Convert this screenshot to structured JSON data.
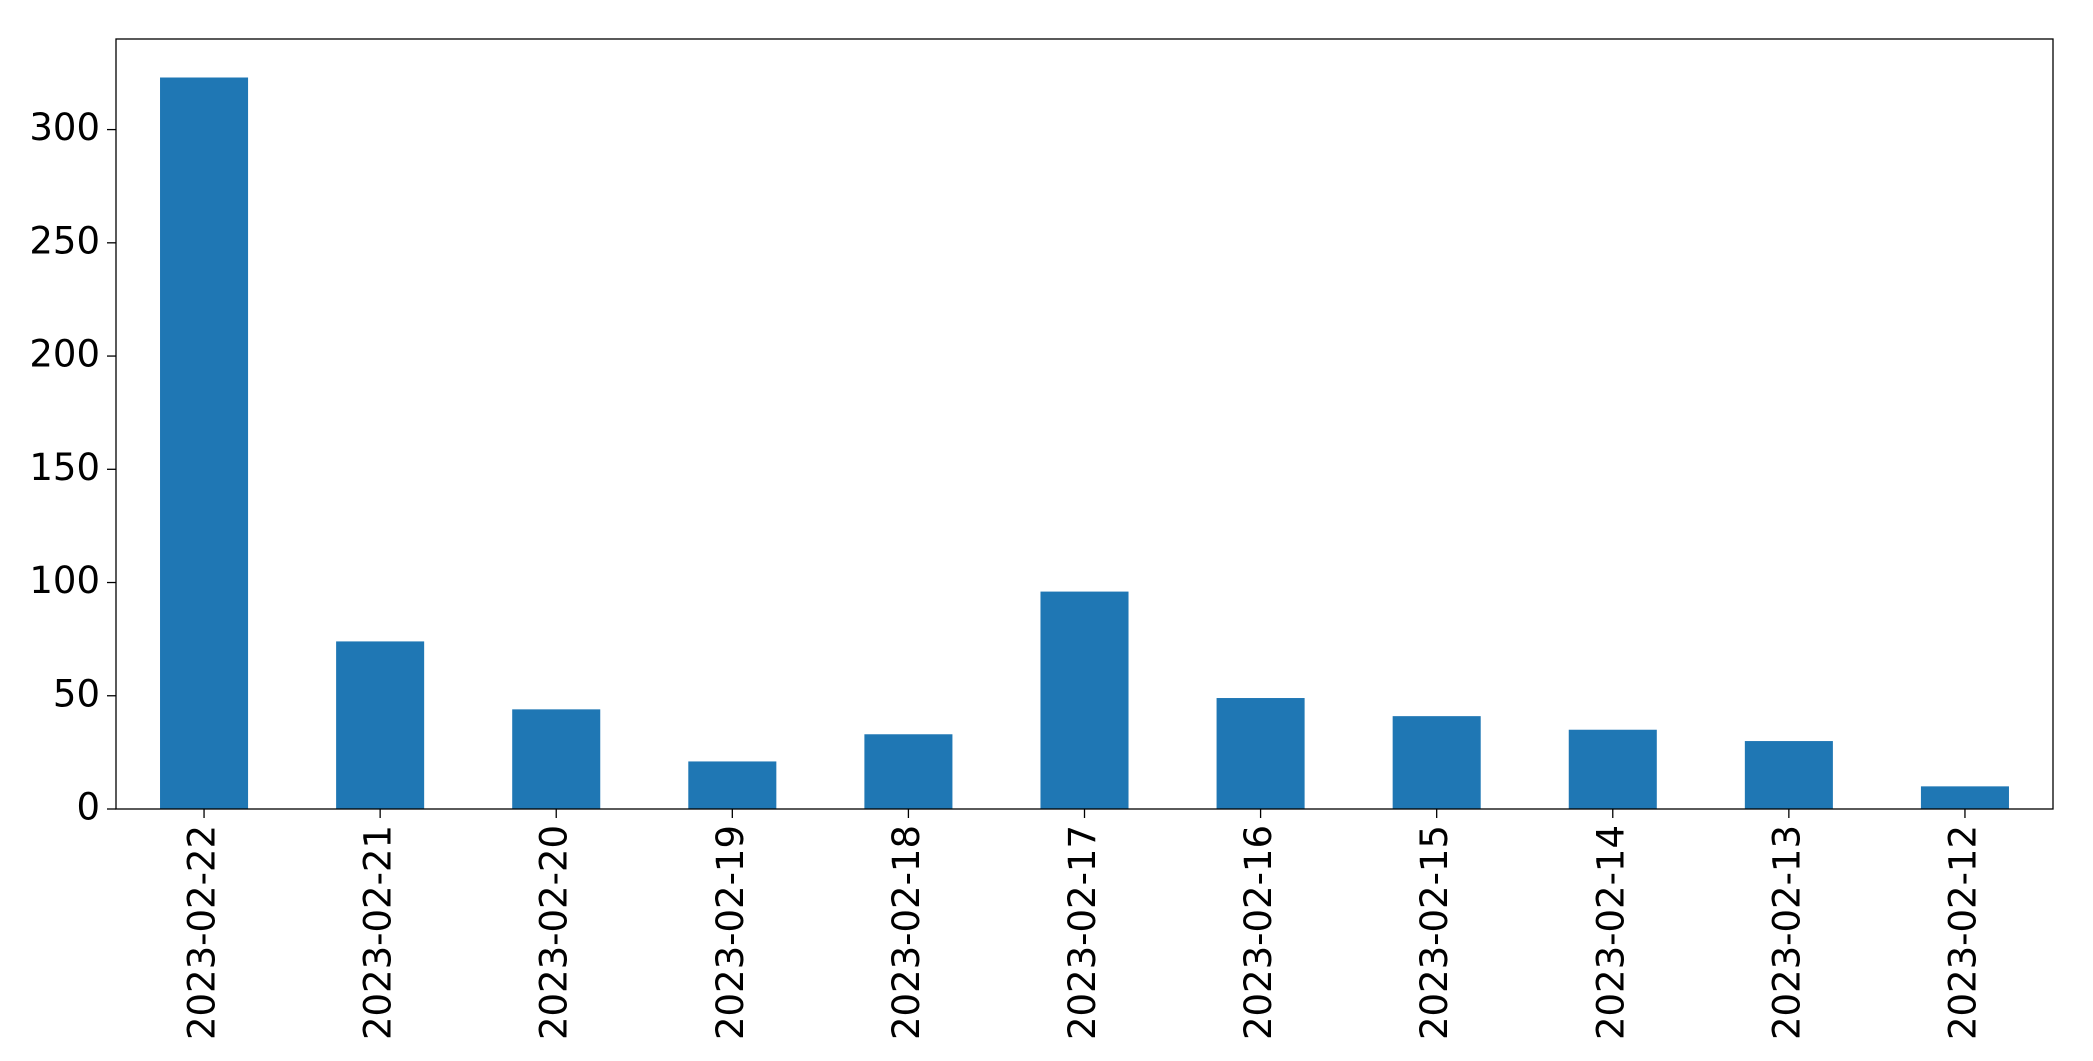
{
  "chart_data": {
    "type": "bar",
    "categories": [
      "2023-02-22",
      "2023-02-21",
      "2023-02-20",
      "2023-02-19",
      "2023-02-18",
      "2023-02-17",
      "2023-02-16",
      "2023-02-15",
      "2023-02-14",
      "2023-02-13",
      "2023-02-12"
    ],
    "values": [
      323,
      74,
      44,
      21,
      33,
      96,
      49,
      41,
      35,
      30,
      10
    ],
    "color": "#1f77b4",
    "ylim": [
      0,
      340
    ],
    "yticks": [
      0,
      50,
      100,
      150,
      200,
      250,
      300
    ],
    "grid": false
  }
}
